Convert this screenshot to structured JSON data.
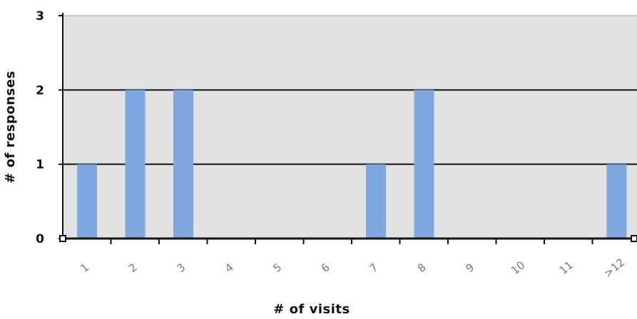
{
  "chart_data": {
    "type": "bar",
    "categories": [
      "1",
      "2",
      "3",
      "4",
      "5",
      "6",
      "7",
      "8",
      "9",
      "10",
      "11",
      ">12"
    ],
    "values": [
      1,
      2,
      2,
      0,
      0,
      0,
      1,
      2,
      0,
      0,
      0,
      1
    ],
    "title": "",
    "xlabel": "# of visits",
    "ylabel": "# of responses",
    "ylim": [
      0,
      3
    ],
    "yticks": [
      0,
      1,
      2,
      3
    ],
    "grid": true,
    "legend": "none",
    "colors": {
      "bar": "#80a8e0",
      "plot_background": "#e2e2e2",
      "gridline": "#111111"
    }
  }
}
